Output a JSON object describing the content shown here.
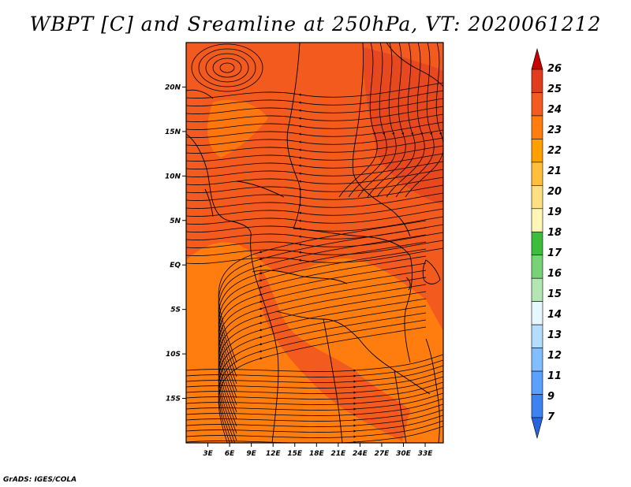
{
  "title": "WBPT [C] and Sreamline at 250hPa, VT: 2020061212",
  "credit": "GrADS: IGES/COLA",
  "map": {
    "lon_range": [
      0,
      35.5
    ],
    "lat_range": [
      -20,
      25
    ],
    "lat_ticks": [
      {
        "value": 20,
        "label": "20N"
      },
      {
        "value": 15,
        "label": "15N"
      },
      {
        "value": 10,
        "label": "10N"
      },
      {
        "value": 5,
        "label": "5N"
      },
      {
        "value": 0,
        "label": "EQ"
      },
      {
        "value": -5,
        "label": "5S"
      },
      {
        "value": -10,
        "label": "10S"
      },
      {
        "value": -15,
        "label": "15S"
      }
    ],
    "lon_ticks": [
      {
        "value": 3,
        "label": "3E"
      },
      {
        "value": 6,
        "label": "6E"
      },
      {
        "value": 9,
        "label": "9E"
      },
      {
        "value": 12,
        "label": "12E"
      },
      {
        "value": 15,
        "label": "15E"
      },
      {
        "value": 18,
        "label": "18E"
      },
      {
        "value": 21,
        "label": "21E"
      },
      {
        "value": 24,
        "label": "24E"
      },
      {
        "value": 27,
        "label": "27E"
      },
      {
        "value": 30,
        "label": "30E"
      },
      {
        "value": 33,
        "label": "33E"
      }
    ],
    "field_colors": {
      "level_23_24": "#f25a1e",
      "level_22_23": "#ff7d0f",
      "level_24_25": "#e13c1e"
    }
  },
  "colorbar": {
    "labels": [
      "26",
      "25",
      "24",
      "23",
      "22",
      "21",
      "20",
      "19",
      "18",
      "17",
      "16",
      "15",
      "14",
      "13",
      "12",
      "11",
      "9",
      "7"
    ],
    "colors": [
      "#c80000",
      "#e13c1e",
      "#f25a1e",
      "#ff7d0f",
      "#ffa000",
      "#ffbe3c",
      "#ffe080",
      "#fff5b4",
      "#3cbe3c",
      "#78d278",
      "#b4e6b4",
      "#e6f8ff",
      "#b4dcff",
      "#82beff",
      "#5aa0ff",
      "#3c82f0",
      "#2864dc"
    ]
  }
}
